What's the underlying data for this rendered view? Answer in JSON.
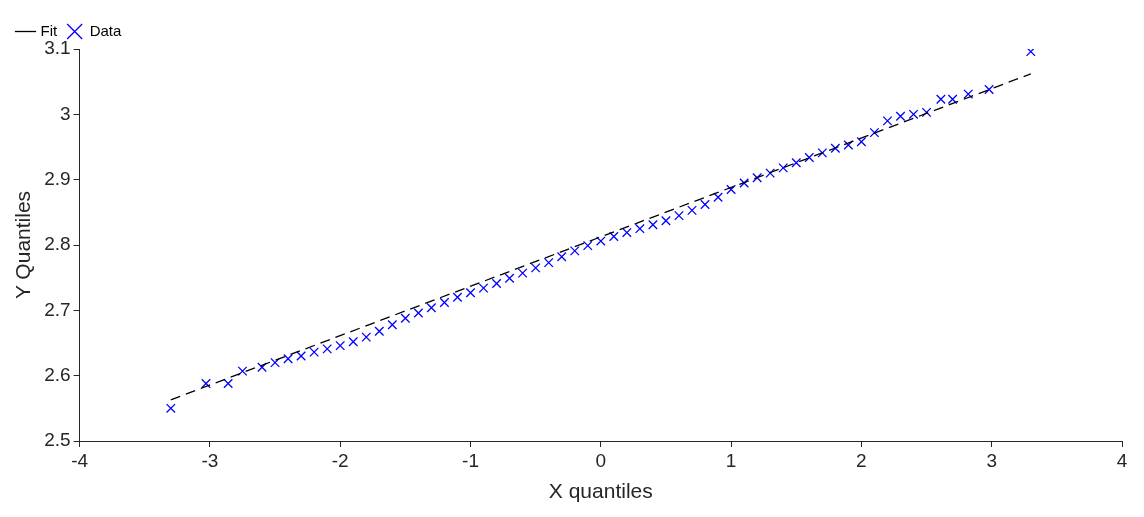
{
  "chart_data": {
    "type": "scatter",
    "xlabel": "X quantiles",
    "ylabel": "Y Quantiles",
    "xlim": [
      -4,
      4
    ],
    "xticks": [
      -4,
      -3,
      -2,
      -1,
      0,
      1,
      2,
      3,
      4
    ],
    "ylim": [
      2.5,
      3.1
    ],
    "yticks": [
      2.5,
      2.6,
      2.7,
      2.8,
      2.9,
      3,
      3.1
    ],
    "grid": false,
    "legend": "top left",
    "series": [
      {
        "name": "Fit",
        "type": "line",
        "color": "#000000",
        "line_style": "dashed",
        "marker": "none",
        "x": [
          -3.3,
          3.3
        ],
        "values": [
          2.563,
          3.062
        ]
      },
      {
        "name": "Data",
        "type": "scatter",
        "color": "#0000ff",
        "marker": "cross",
        "x": [
          -3.3,
          -3.03,
          -2.86,
          -2.75,
          -2.6,
          -2.5,
          -2.4,
          -2.3,
          -2.2,
          -2.1,
          -2.0,
          -1.9,
          -1.8,
          -1.7,
          -1.6,
          -1.5,
          -1.4,
          -1.3,
          -1.2,
          -1.1,
          -1.0,
          -0.9,
          -0.8,
          -0.7,
          -0.6,
          -0.5,
          -0.4,
          -0.3,
          -0.2,
          -0.1,
          0,
          0.1,
          0.2,
          0.3,
          0.4,
          0.5,
          0.6,
          0.7,
          0.8,
          0.9,
          1.0,
          1.1,
          1.2,
          1.3,
          1.4,
          1.5,
          1.6,
          1.7,
          1.8,
          1.9,
          2.0,
          2.1,
          2.2,
          2.3,
          2.4,
          2.5,
          2.61,
          2.7,
          2.82,
          2.98,
          3.3
        ],
        "values": [
          2.55,
          2.588,
          2.588,
          2.607,
          2.613,
          2.62,
          2.626,
          2.63,
          2.636,
          2.641,
          2.646,
          2.652,
          2.659,
          2.668,
          2.678,
          2.688,
          2.696,
          2.704,
          2.712,
          2.72,
          2.727,
          2.734,
          2.741,
          2.749,
          2.757,
          2.765,
          2.773,
          2.782,
          2.791,
          2.799,
          2.806,
          2.813,
          2.819,
          2.825,
          2.831,
          2.837,
          2.845,
          2.853,
          2.862,
          2.873,
          2.885,
          2.895,
          2.903,
          2.91,
          2.918,
          2.926,
          2.934,
          2.941,
          2.948,
          2.953,
          2.958,
          2.972,
          2.99,
          2.997,
          3.0,
          3.003,
          3.023,
          3.023,
          3.031,
          3.038,
          3.096
        ]
      }
    ]
  }
}
